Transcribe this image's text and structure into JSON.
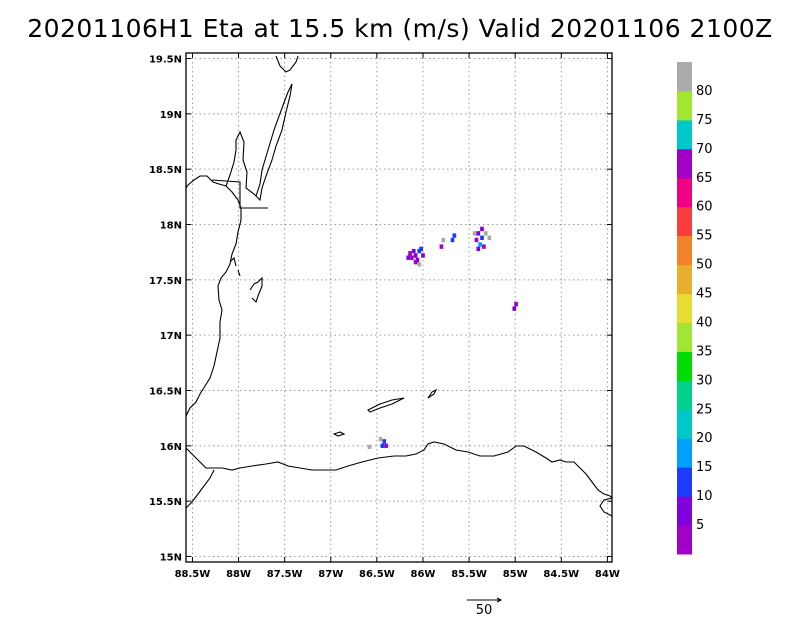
{
  "title": "20201106H1 Eta at 15.5 km (m/s) Valid 20201106 2100Z",
  "chart_data": {
    "type": "heatmap",
    "title": "20201106H1 Eta at 15.5 km (m/s) Valid 20201106 2100Z",
    "xlim": [
      -88.57,
      -83.95
    ],
    "ylim": [
      14.95,
      19.55
    ],
    "grid": true,
    "x_ticks": [
      {
        "value": -88.5,
        "label": "88.5W"
      },
      {
        "value": -88.0,
        "label": "88W"
      },
      {
        "value": -87.5,
        "label": "87.5W"
      },
      {
        "value": -87.0,
        "label": "87W"
      },
      {
        "value": -86.5,
        "label": "86.5W"
      },
      {
        "value": -86.0,
        "label": "86W"
      },
      {
        "value": -85.5,
        "label": "85.5W"
      },
      {
        "value": -85.0,
        "label": "85W"
      },
      {
        "value": -84.5,
        "label": "84.5W"
      },
      {
        "value": -84.0,
        "label": "84W"
      }
    ],
    "y_ticks": [
      {
        "value": 15.0,
        "label": "15N"
      },
      {
        "value": 15.5,
        "label": "15.5N"
      },
      {
        "value": 16.0,
        "label": "16N"
      },
      {
        "value": 16.5,
        "label": "16.5N"
      },
      {
        "value": 17.0,
        "label": "17N"
      },
      {
        "value": 17.5,
        "label": "17.5N"
      },
      {
        "value": 18.0,
        "label": "18N"
      },
      {
        "value": 18.5,
        "label": "18.5N"
      },
      {
        "value": 19.0,
        "label": "19N"
      },
      {
        "value": 19.5,
        "label": "19.5N"
      }
    ],
    "colorbar": {
      "labels": [
        "5",
        "10",
        "15",
        "20",
        "25",
        "30",
        "35",
        "40",
        "45",
        "50",
        "55",
        "60",
        "65",
        "70",
        "75",
        "80"
      ],
      "colors": [
        "#a000c8",
        "#8200dc",
        "#1e3cff",
        "#00a0ff",
        "#00c8c8",
        "#00d28c",
        "#00dc00",
        "#a0e632",
        "#e6dc32",
        "#e6af2d",
        "#f08228",
        "#fa3c3c",
        "#f00082",
        "#a000c8",
        "#00c8c8",
        "#a0e632",
        "#aaaaaa"
      ]
    },
    "vector_reference": {
      "label": "50"
    },
    "cells": [
      {
        "lon": -86.08,
        "lat": 17.72,
        "v": 8
      },
      {
        "lon": -86.12,
        "lat": 17.7,
        "v": 4
      },
      {
        "lon": -86.04,
        "lat": 17.76,
        "v": 12
      },
      {
        "lon": -86.1,
        "lat": 17.76,
        "v": 6
      },
      {
        "lon": -86.14,
        "lat": 17.74,
        "v": 3
      },
      {
        "lon": -86.06,
        "lat": 17.68,
        "v": 5
      },
      {
        "lon": -86.02,
        "lat": 17.78,
        "v": 14
      },
      {
        "lon": -86.0,
        "lat": 17.72,
        "v": 9
      },
      {
        "lon": -86.08,
        "lat": 17.66,
        "v": 2
      },
      {
        "lon": -86.16,
        "lat": 17.7,
        "v": 7
      },
      {
        "lon": -86.04,
        "lat": 17.64,
        "v": 82
      },
      {
        "lon": -85.8,
        "lat": 17.8,
        "v": 4
      },
      {
        "lon": -85.78,
        "lat": 17.86,
        "v": 82
      },
      {
        "lon": -85.66,
        "lat": 17.9,
        "v": 11
      },
      {
        "lon": -85.68,
        "lat": 17.86,
        "v": 12
      },
      {
        "lon": -85.4,
        "lat": 17.92,
        "v": 6
      },
      {
        "lon": -85.36,
        "lat": 17.88,
        "v": 14
      },
      {
        "lon": -85.42,
        "lat": 17.86,
        "v": 4
      },
      {
        "lon": -85.38,
        "lat": 17.82,
        "v": 16
      },
      {
        "lon": -85.34,
        "lat": 17.8,
        "v": 3
      },
      {
        "lon": -85.4,
        "lat": 17.78,
        "v": 7
      },
      {
        "lon": -85.36,
        "lat": 17.96,
        "v": 8
      },
      {
        "lon": -85.32,
        "lat": 17.92,
        "v": 82
      },
      {
        "lon": -85.28,
        "lat": 17.88,
        "v": 82
      },
      {
        "lon": -85.44,
        "lat": 17.92,
        "v": 82
      },
      {
        "lon": -84.99,
        "lat": 17.28,
        "v": 4
      },
      {
        "lon": -85.01,
        "lat": 17.24,
        "v": 6
      },
      {
        "lon": -86.42,
        "lat": 16.04,
        "v": 11
      },
      {
        "lon": -86.4,
        "lat": 16.0,
        "v": 4
      },
      {
        "lon": -86.44,
        "lat": 16.0,
        "v": 12
      },
      {
        "lon": -86.46,
        "lat": 16.06,
        "v": 82
      },
      {
        "lon": -86.58,
        "lat": 15.99,
        "v": 82
      }
    ]
  }
}
